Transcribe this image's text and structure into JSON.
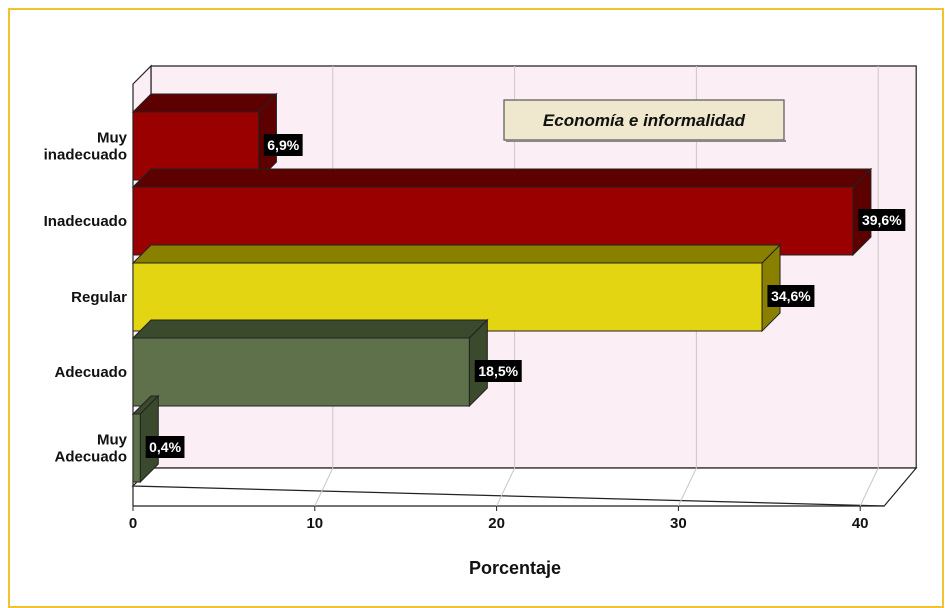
{
  "chart_data": {
    "type": "bar",
    "orientation": "horizontal",
    "three_d": true,
    "categories": [
      [
        "Muy",
        "inadecuado"
      ],
      [
        "Inadecuado"
      ],
      [
        "Regular"
      ],
      [
        "Adecuado"
      ],
      [
        "Muy",
        "Adecuado"
      ]
    ],
    "values": [
      6.9,
      39.6,
      34.6,
      18.5,
      0.4
    ],
    "data_labels": [
      "6,9%",
      "39,6%",
      "34,6%",
      "18,5%",
      "0,4%"
    ],
    "bar_colors": [
      "#9b0000",
      "#9b0000",
      "#e3d512",
      "#5f714b",
      "#5f714b"
    ],
    "side_colors": [
      "#5c0000",
      "#5c0000",
      "#8a8000",
      "#3b4a2c",
      "#3b4a2c"
    ],
    "xlim": [
      0,
      40
    ],
    "x_ticks": [
      0,
      10,
      20,
      30,
      40
    ],
    "x_tick_labels": [
      "0",
      "10",
      "20",
      "30",
      "40"
    ],
    "xlabel": "Porcentaje",
    "legend_box_text": "Economía e informalidad",
    "plot_background": "#fceef5",
    "grid": true,
    "frame_border_color": "#f2c230"
  }
}
